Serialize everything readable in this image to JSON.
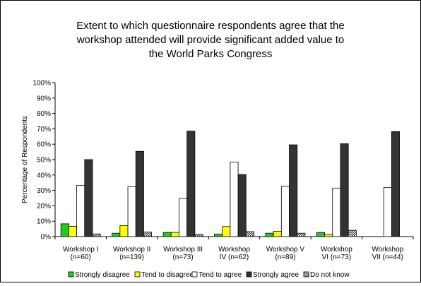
{
  "chart_data": {
    "type": "bar",
    "title_lines": [
      "Extent to which questionnaire respondents agree that the",
      "workshop attended will provide significant added value to",
      "the World Parks Congress"
    ],
    "xlabel": "",
    "ylabel": "Percentage of Respondents",
    "ylim": [
      0,
      100
    ],
    "yticks": [
      "0%",
      "10%",
      "20%",
      "30%",
      "40%",
      "50%",
      "60%",
      "70%",
      "80%",
      "90%",
      "100%"
    ],
    "categories": [
      [
        "Workshop I",
        "(n=60)"
      ],
      [
        "Workshop II",
        "(n=139)"
      ],
      [
        "Workshop III",
        "(n=73)"
      ],
      [
        "Workshop",
        "IV (n=62)"
      ],
      [
        "Workshop V",
        "(n=89)"
      ],
      [
        "Workshop",
        "VI (n=73)"
      ],
      [
        "Workshop",
        "VII (n=44)"
      ]
    ],
    "series": [
      {
        "name": "Strongly disagree",
        "color": "#22cc22",
        "pattern": "solid",
        "values": [
          8.3,
          2.2,
          2.7,
          1.6,
          2.2,
          2.7,
          0
        ]
      },
      {
        "name": "Tend to disagree",
        "color": "#ffff00",
        "pattern": "solid",
        "values": [
          6.7,
          7.2,
          2.7,
          6.5,
          3.4,
          1.4,
          0
        ]
      },
      {
        "name": "Tend to agree",
        "color": "#ffffff",
        "pattern": "solid",
        "values": [
          33.3,
          32.4,
          24.7,
          48.4,
          32.6,
          31.5,
          31.8
        ]
      },
      {
        "name": "Strongly agree",
        "color": "#333333",
        "pattern": "solid",
        "values": [
          50.0,
          55.4,
          68.5,
          40.3,
          59.6,
          60.3,
          68.2
        ]
      },
      {
        "name": "Do not know",
        "color": "#888888",
        "pattern": "checker",
        "values": [
          1.7,
          2.9,
          1.4,
          3.2,
          2.2,
          4.1,
          0
        ]
      }
    ],
    "grid": false,
    "legend_position": "bottom"
  }
}
